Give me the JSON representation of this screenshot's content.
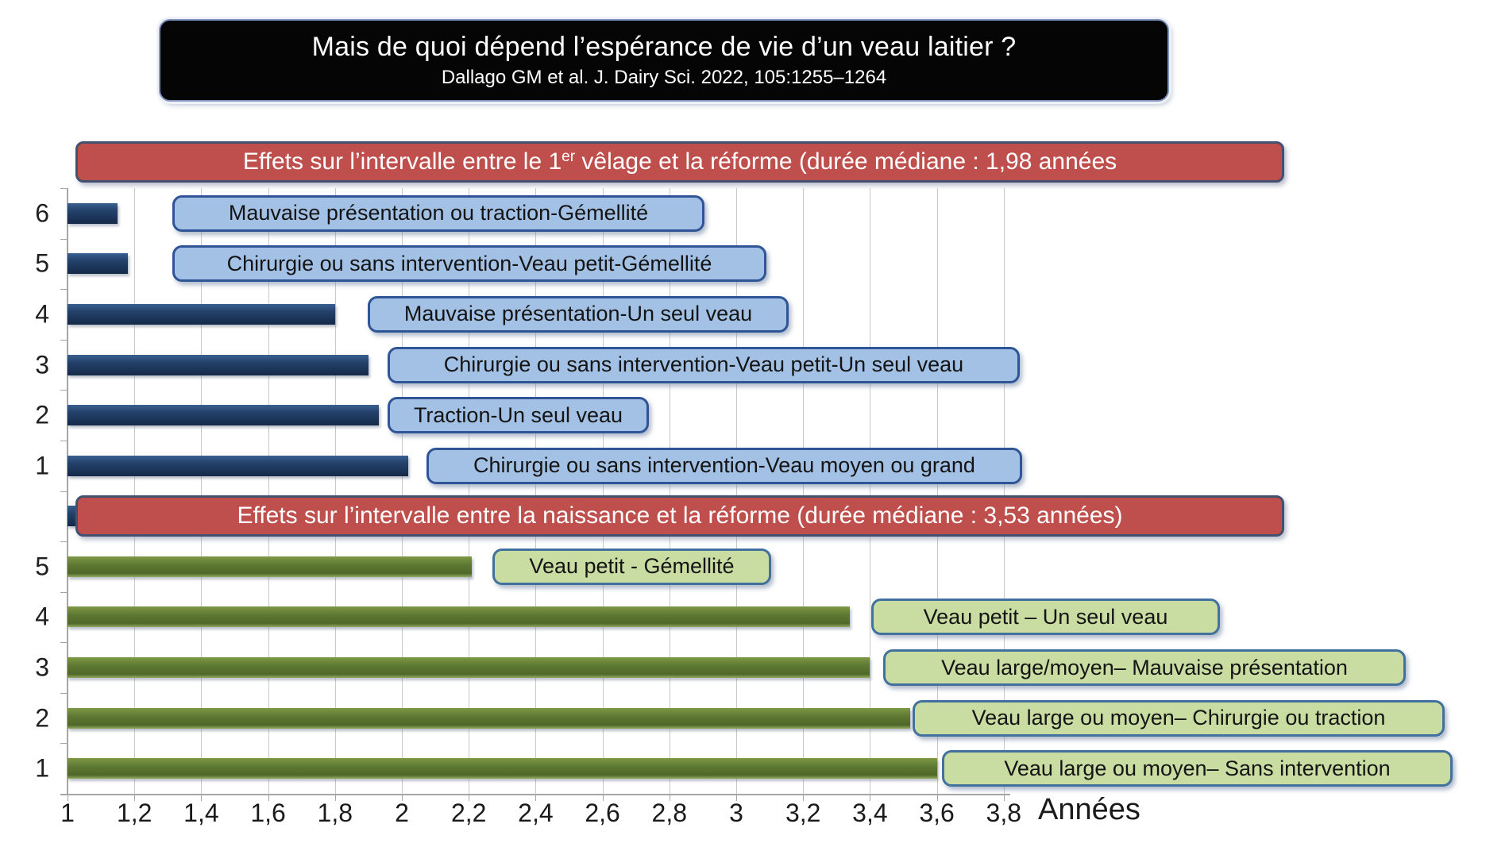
{
  "title": {
    "heading": "Mais de quoi dépend l’espérance de vie d’un veau laitier ?",
    "citation": "Dallago GM et al. J. Dairy Sci. 2022, 105:1255–1264"
  },
  "banners": [
    {
      "prefix": "Effets sur l’intervalle entre le 1",
      "sup": "er",
      "suffix": " vêlage et la réforme (durée médiane : 1,98 années"
    },
    {
      "prefix": "Effets sur l’intervalle entre la naissance et la réforme (durée médiane : 3,53 années)",
      "sup": "",
      "suffix": ""
    }
  ],
  "colors": {
    "banner_fill": "#BF4F4C",
    "banner_border": "#44506F",
    "blue_bar": "#1F3C64",
    "blue_label_fill": "#A3C1E5",
    "blue_label_border": "#2F5597",
    "green_bar": "#5A7431",
    "green_label_fill": "#C9DCA2",
    "green_label_border": "#41719C",
    "gridline": "#C9C9C9",
    "axis": "#A6A6A6",
    "title_box_fill": "#000000",
    "title_text": "#FFFFFF"
  },
  "chart_data": {
    "type": "bar",
    "orientation": "horizontal",
    "xlabel": "Années",
    "xlim": [
      1,
      3.9
    ],
    "grid": true,
    "legend": "none",
    "x_ticks": [
      {
        "value": 1,
        "label": "1"
      },
      {
        "value": 1.2,
        "label": "1,2"
      },
      {
        "value": 1.4,
        "label": "1,4"
      },
      {
        "value": 1.6,
        "label": "1,6"
      },
      {
        "value": 1.8,
        "label": "1,8"
      },
      {
        "value": 2,
        "label": "2"
      },
      {
        "value": 2.2,
        "label": "2,2"
      },
      {
        "value": 2.4,
        "label": "2,4"
      },
      {
        "value": 2.6,
        "label": "2,6"
      },
      {
        "value": 2.8,
        "label": "2,8"
      },
      {
        "value": 3,
        "label": "3"
      },
      {
        "value": 3.2,
        "label": "3,2"
      },
      {
        "value": 3.4,
        "label": "3,4"
      },
      {
        "value": 3.6,
        "label": "3,6"
      },
      {
        "value": 3.8,
        "label": "3,8"
      }
    ],
    "groups": [
      {
        "name": "Effets sur l’intervalle entre le 1er vêlage et la réforme",
        "median_label": "1,98 années",
        "style": "blue",
        "bars": [
          {
            "rank": "6",
            "label": "Mauvaise présentation ou traction-Gémellité",
            "value": 1.15
          },
          {
            "rank": "5",
            "label": "Chirurgie ou sans intervention-Veau petit-Gémellité",
            "value": 1.18
          },
          {
            "rank": "4",
            "label": "Mauvaise présentation-Un seul veau",
            "value": 1.8
          },
          {
            "rank": "3",
            "label": "Chirurgie ou sans intervention-Veau petit-Un seul veau",
            "value": 1.9
          },
          {
            "rank": "2",
            "label": "Traction-Un seul veau",
            "value": 1.93
          },
          {
            "rank": "1",
            "label": "Chirurgie ou sans intervention-Veau moyen ou grand",
            "value": 2.02
          }
        ]
      },
      {
        "name": "Effets sur l’intervalle entre la naissance et la réforme",
        "median_label": "3,53 années",
        "style": "green",
        "bars": [
          {
            "rank": "5",
            "label": "Veau petit - Gémellité",
            "value": 2.21
          },
          {
            "rank": "4",
            "label": "Veau petit – Un seul veau",
            "value": 3.34
          },
          {
            "rank": "3",
            "label": "Veau large/moyen– Mauvaise présentation",
            "value": 3.4
          },
          {
            "rank": "2",
            "label": "Veau large ou moyen– Chirurgie ou traction",
            "value": 3.52
          },
          {
            "rank": "1",
            "label": "Veau large ou moyen– Sans intervention",
            "value": 3.6
          }
        ]
      }
    ],
    "unlabeled_header_bar": {
      "value": 1.03,
      "style": "blue"
    }
  }
}
